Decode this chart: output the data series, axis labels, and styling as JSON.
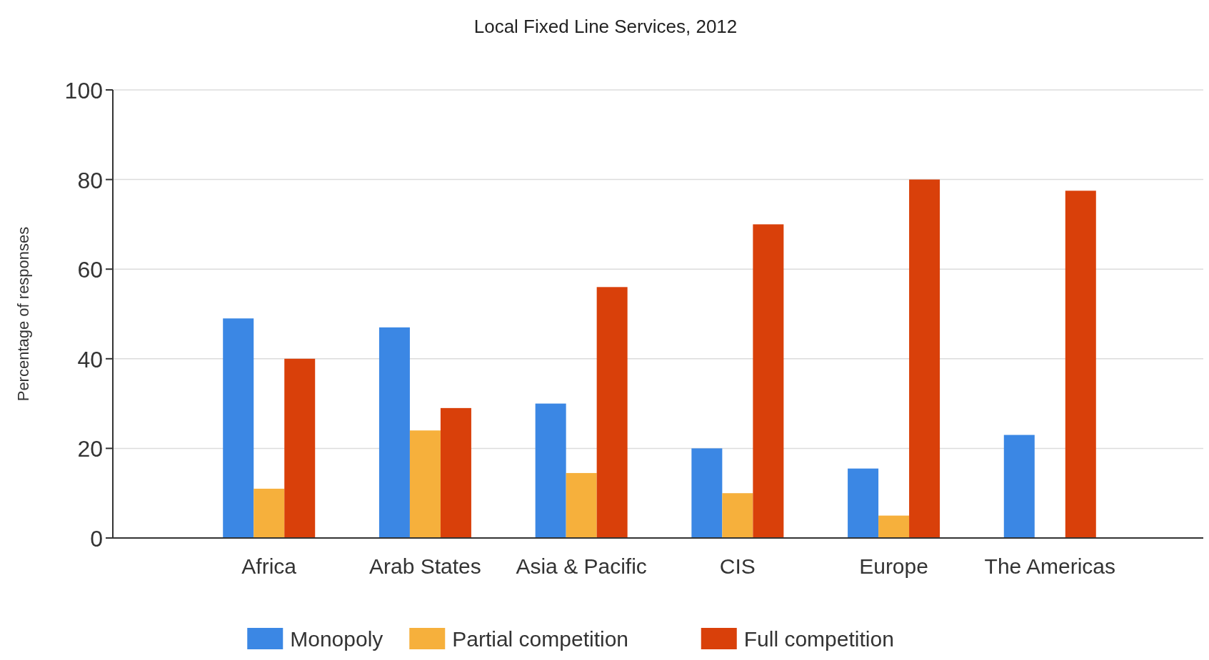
{
  "chart_data": {
    "type": "bar",
    "title": "Local Fixed Line Services, 2012",
    "ylabel": "Percentage of responses",
    "categories": [
      "Africa",
      "Arab States",
      "Asia & Pacific",
      "CIS",
      "Europe",
      "The Americas"
    ],
    "series": [
      {
        "name": "Monopoly",
        "color": "#3b87e4",
        "values": [
          49,
          47,
          30,
          20,
          15.5,
          23
        ]
      },
      {
        "name": "Partial competition",
        "color": "#f6b03c",
        "values": [
          11,
          24,
          14.5,
          10,
          5,
          0
        ]
      },
      {
        "name": "Full competition",
        "color": "#d9400a",
        "values": [
          40,
          29,
          56,
          70,
          80,
          77.5
        ]
      }
    ],
    "ylim": [
      0,
      100
    ],
    "yticks": [
      0,
      20,
      40,
      60,
      80,
      100
    ],
    "grid": "y",
    "legend": "bottom"
  }
}
